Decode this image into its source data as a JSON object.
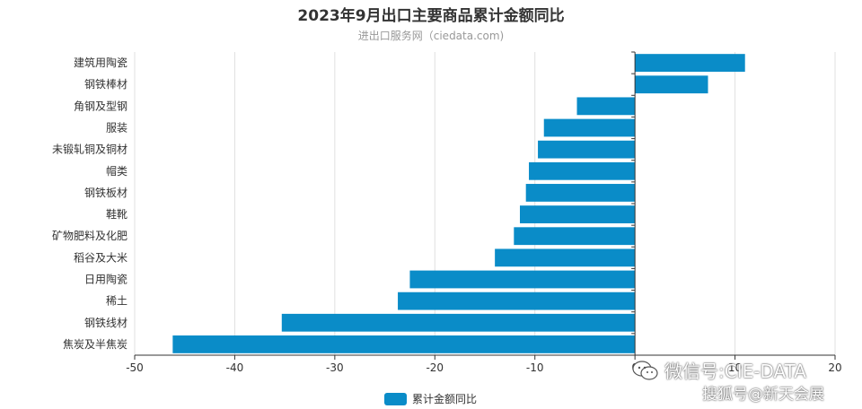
{
  "chart_data": {
    "type": "bar",
    "orientation": "horizontal",
    "title": "2023年9月出口主要商品累计金额同比",
    "subtitle": "进出口服务网（ciedata.com)",
    "categories": [
      "建筑用陶瓷",
      "钢铁棒材",
      "角钢及型钢",
      "服装",
      "未锻轧铜及铜材",
      "帽类",
      "钢铁板材",
      "鞋靴",
      "矿物肥料及化肥",
      "稻谷及大米",
      "日用陶瓷",
      "稀土",
      "钢铁线材",
      "焦炭及半焦炭"
    ],
    "series": [
      {
        "name": "累计金额同比",
        "color": "#0a8cc8",
        "values": [
          11.0,
          7.3,
          -5.8,
          -9.1,
          -9.7,
          -10.6,
          -10.9,
          -11.5,
          -12.1,
          -14.0,
          -22.5,
          -23.7,
          -35.3,
          -46.2
        ]
      }
    ],
    "xlim": [
      -50,
      20
    ],
    "xticks": [
      -50,
      -40,
      -30,
      -20,
      -10,
      0,
      10,
      20
    ],
    "xtick_labels": [
      "-50",
      "-40",
      "-30",
      "-20",
      "-10",
      "0",
      "10",
      "20"
    ],
    "grid": "vertical",
    "legend_position": "bottom-center"
  },
  "watermark": {
    "line1": "微信号:CIE-DATA",
    "line2": "搜狐号@新天会展"
  },
  "colors": {
    "bar": "#0a8cc8",
    "grid": "#e0e0e0",
    "axis": "#333333"
  }
}
